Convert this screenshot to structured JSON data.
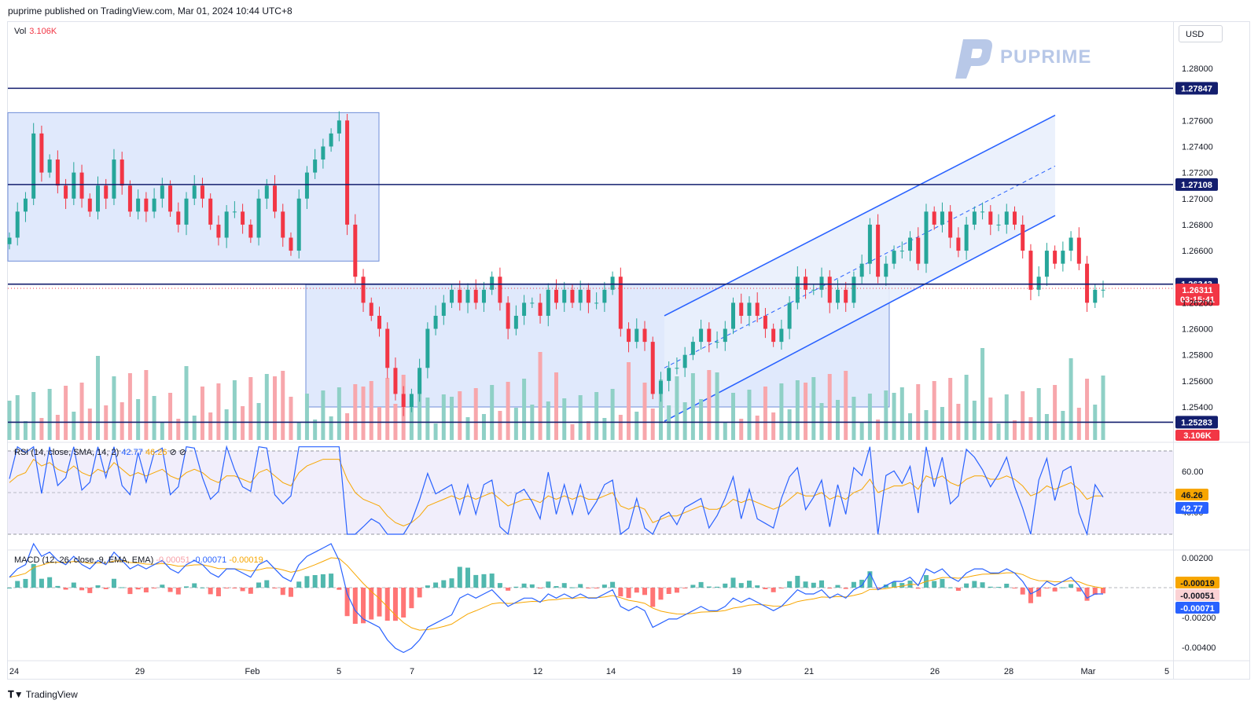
{
  "header": {
    "published": "puprime published on TradingView.com, Mar 01, 2024 10:44 UTC+8"
  },
  "currency_button": "USD",
  "watermark": "PUPRIME",
  "footer": "TradingView",
  "volume_legend": {
    "label": "Vol",
    "value": "3.106K"
  },
  "rsi_legend": {
    "label": "RSI (14, close, SMA, 14, 2)",
    "rsi": "42.77",
    "sma": "46.26",
    "extra": "⊘ ⊘"
  },
  "macd_legend": {
    "label": "MACD (12, 26, close, 9, EMA, EMA)",
    "hist": "-0.00051",
    "macd": "-0.00071",
    "signal": "-0.00019"
  },
  "colors": {
    "bull": "#26a69a",
    "bear": "#f23645",
    "level_line": "#131e6e",
    "channel": "#2962ff",
    "zone_fill": "#dbe5fb",
    "rsi_line": "#2962ff",
    "rsi_sma": "#f7a600"
  },
  "chart_data": [
    {
      "type": "candlestick",
      "price_axis": {
        "ticks": [
          "1.28000",
          "1.27600",
          "1.27400",
          "1.27200",
          "1.27000",
          "1.26800",
          "1.26600",
          "1.26200",
          "1.26000",
          "1.25800",
          "1.25600",
          "1.25400"
        ],
        "range": [
          1.25,
          1.283
        ]
      },
      "x_ticks": [
        "24",
        "29",
        "Feb",
        "5",
        "7",
        "12",
        "14",
        "19",
        "21",
        "26",
        "28",
        "Mar",
        "5"
      ],
      "levels": [
        {
          "price": 1.27847,
          "label": "1.27847"
        },
        {
          "price": 1.27108,
          "label": "1.27108"
        },
        {
          "price": 1.26343,
          "label": "1.26343"
        },
        {
          "price": 1.25283,
          "label": "1.25283"
        }
      ],
      "current_price": {
        "label": "1.26311",
        "countdown": "03:15:41"
      },
      "volume_badge": "3.106K",
      "close_series": [
        1.267,
        1.269,
        1.27,
        1.275,
        1.272,
        1.273,
        1.271,
        1.27,
        1.272,
        1.27,
        1.269,
        1.271,
        1.27,
        1.273,
        1.271,
        1.269,
        1.27,
        1.269,
        1.27,
        1.271,
        1.269,
        1.268,
        1.27,
        1.271,
        1.27,
        1.268,
        1.267,
        1.269,
        1.269,
        1.268,
        1.267,
        1.27,
        1.271,
        1.269,
        1.267,
        1.266,
        1.27,
        1.272,
        1.273,
        1.274,
        1.275,
        1.276,
        1.268,
        1.264,
        1.262,
        1.261,
        1.26,
        1.257,
        1.255,
        1.254,
        1.255,
        1.257,
        1.26,
        1.261,
        1.262,
        1.263,
        1.262,
        1.263,
        1.262,
        1.263,
        1.264,
        1.262,
        1.26,
        1.261,
        1.262,
        1.262,
        1.261,
        1.263,
        1.262,
        1.263,
        1.262,
        1.263,
        1.262,
        1.262,
        1.263,
        1.264,
        1.26,
        1.259,
        1.26,
        1.259,
        1.255,
        1.256,
        1.257,
        1.257,
        1.258,
        1.259,
        1.26,
        1.259,
        1.259,
        1.26,
        1.262,
        1.261,
        1.262,
        1.261,
        1.26,
        1.259,
        1.26,
        1.262,
        1.264,
        1.263,
        1.263,
        1.264,
        1.262,
        1.263,
        1.262,
        1.264,
        1.265,
        1.268,
        1.264,
        1.265,
        1.266,
        1.266,
        1.267,
        1.265,
        1.269,
        1.268,
        1.269,
        1.267,
        1.266,
        1.268,
        1.269,
        1.269,
        1.268,
        1.268,
        1.269,
        1.268,
        1.266,
        1.263,
        1.264,
        1.266,
        1.265,
        1.266,
        1.267,
        1.265,
        1.262,
        1.263,
        1.263
      ]
    },
    {
      "type": "line",
      "name": "RSI",
      "y_ticks": [
        "60.00",
        "40.00"
      ],
      "badges": {
        "sma": "46.26",
        "rsi": "42.77"
      }
    },
    {
      "type": "histogram+line",
      "name": "MACD",
      "y_ticks": [
        "0.00200",
        "-0.00200",
        "-0.00400"
      ],
      "badges": {
        "signal": "-0.00019",
        "hist": "-0.00051",
        "macd": "-0.00071"
      }
    }
  ]
}
